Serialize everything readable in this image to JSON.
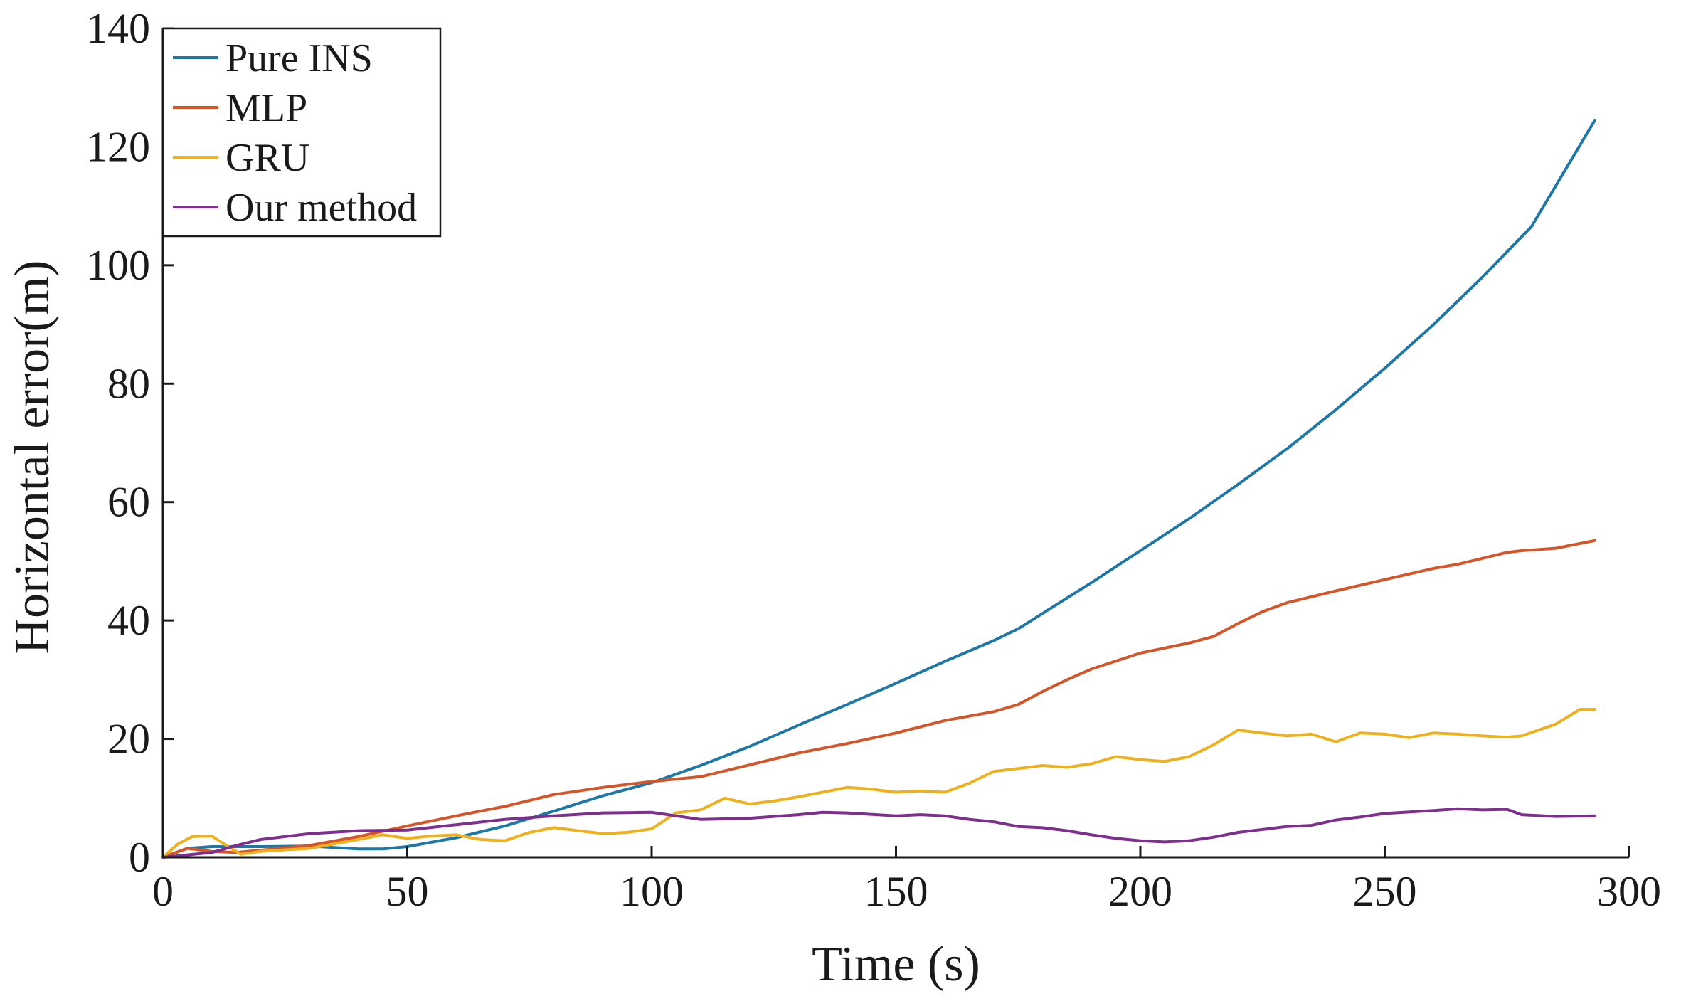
{
  "chart_data": {
    "type": "line",
    "title": "",
    "xlabel": "Time (s)",
    "ylabel": "Horizontal error(m)",
    "xlim": [
      0,
      300
    ],
    "ylim": [
      0,
      140
    ],
    "xticks": [
      0,
      50,
      100,
      150,
      200,
      250,
      300
    ],
    "yticks": [
      0,
      20,
      40,
      60,
      80,
      100,
      120,
      140
    ],
    "grid": false,
    "legend_position": "top-left",
    "series": [
      {
        "name": "Pure INS",
        "color": "#1f77a6",
        "x": [
          0,
          5,
          10,
          20,
          30,
          40,
          45,
          50,
          60,
          70,
          80,
          90,
          100,
          110,
          120,
          130,
          140,
          150,
          160,
          170,
          175,
          180,
          190,
          200,
          210,
          220,
          230,
          240,
          250,
          260,
          270,
          280,
          293
        ],
        "y": [
          0,
          1.5,
          1.8,
          1.8,
          1.9,
          1.4,
          1.4,
          1.8,
          3.3,
          5.3,
          7.8,
          10.4,
          12.6,
          15.5,
          18.7,
          22.3,
          25.8,
          29.4,
          33.1,
          36.6,
          38.6,
          41.2,
          46.4,
          51.8,
          57.2,
          63.0,
          69.0,
          75.6,
          82.6,
          90.0,
          98.0,
          106.5,
          124.5
        ]
      },
      {
        "name": "MLP",
        "color": "#d2562a",
        "x": [
          0,
          5,
          10,
          15,
          20,
          30,
          40,
          50,
          60,
          70,
          80,
          90,
          100,
          110,
          120,
          130,
          140,
          150,
          160,
          170,
          175,
          180,
          185,
          190,
          200,
          210,
          215,
          220,
          225,
          230,
          240,
          250,
          260,
          265,
          270,
          275,
          278,
          285,
          293
        ],
        "y": [
          0,
          1.5,
          1.0,
          0.8,
          1.2,
          2.0,
          3.5,
          5.3,
          7.0,
          8.6,
          10.6,
          11.8,
          12.8,
          13.6,
          15.6,
          17.6,
          19.2,
          21.0,
          23.1,
          24.6,
          25.8,
          28.0,
          30.0,
          31.8,
          34.5,
          36.2,
          37.3,
          39.5,
          41.5,
          43.0,
          45.0,
          46.9,
          48.8,
          49.5,
          50.5,
          51.5,
          51.8,
          52.2,
          53.5
        ]
      },
      {
        "name": "GRU",
        "color": "#edb120",
        "x": [
          0,
          3,
          6,
          10,
          13,
          16,
          20,
          30,
          40,
          45,
          50,
          55,
          60,
          65,
          70,
          75,
          80,
          85,
          90,
          95,
          100,
          105,
          110,
          115,
          120,
          125,
          130,
          135,
          140,
          145,
          150,
          155,
          160,
          165,
          170,
          175,
          180,
          185,
          190,
          195,
          200,
          205,
          210,
          215,
          220,
          225,
          230,
          235,
          240,
          245,
          250,
          255,
          260,
          265,
          270,
          275,
          278,
          285,
          290,
          293
        ],
        "y": [
          0,
          2.2,
          3.5,
          3.6,
          2.0,
          0.5,
          1.0,
          1.5,
          3.0,
          3.8,
          3.2,
          3.6,
          3.8,
          3.0,
          2.8,
          4.2,
          5.0,
          4.5,
          4.0,
          4.2,
          4.8,
          7.5,
          8.0,
          10.0,
          9.0,
          9.5,
          10.2,
          11.0,
          11.8,
          11.5,
          11.0,
          11.2,
          11.0,
          12.5,
          14.5,
          15.0,
          15.5,
          15.2,
          15.8,
          17.0,
          16.5,
          16.2,
          17.0,
          19.0,
          21.5,
          21.0,
          20.5,
          20.8,
          19.5,
          21.0,
          20.8,
          20.2,
          21.0,
          20.8,
          20.5,
          20.3,
          20.5,
          22.5,
          25.0,
          25.0
        ]
      },
      {
        "name": "Our method",
        "color": "#7e2f8e",
        "x": [
          0,
          10,
          15,
          20,
          30,
          40,
          50,
          60,
          70,
          80,
          90,
          100,
          105,
          110,
          120,
          130,
          135,
          140,
          150,
          155,
          160,
          165,
          170,
          175,
          180,
          185,
          190,
          195,
          200,
          205,
          210,
          215,
          220,
          230,
          235,
          240,
          245,
          250,
          260,
          265,
          270,
          275,
          278,
          285,
          293
        ],
        "y": [
          0,
          0.8,
          2.0,
          3.0,
          4.0,
          4.5,
          4.6,
          5.5,
          6.4,
          7.0,
          7.5,
          7.6,
          7.0,
          6.4,
          6.6,
          7.2,
          7.6,
          7.5,
          7.0,
          7.2,
          7.0,
          6.4,
          6.0,
          5.2,
          5.0,
          4.5,
          3.8,
          3.2,
          2.8,
          2.6,
          2.8,
          3.4,
          4.2,
          5.2,
          5.4,
          6.3,
          6.8,
          7.4,
          7.9,
          8.2,
          8.0,
          8.1,
          7.2,
          6.9,
          7.0
        ]
      }
    ]
  }
}
